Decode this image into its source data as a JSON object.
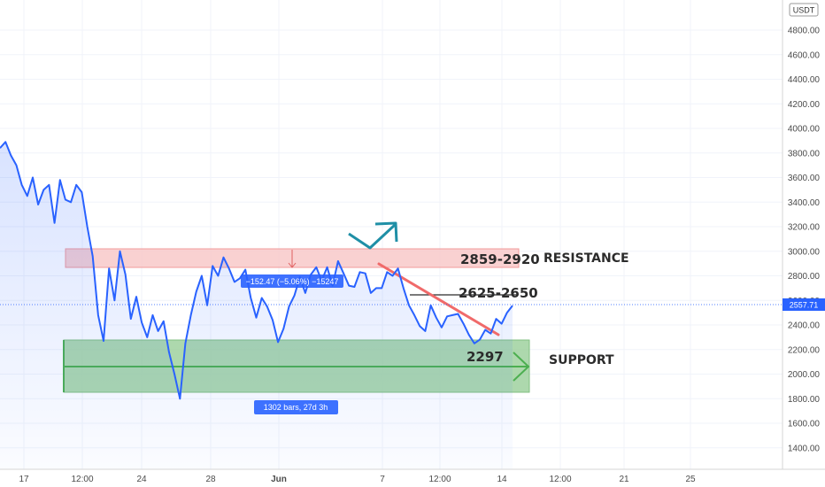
{
  "chart_data": {
    "type": "line",
    "symbol_currency": "USDT",
    "last_price": "2557.71",
    "ylim": [
      1300,
      5000
    ],
    "y_ticks": [
      "4800.00",
      "4600.00",
      "4400.00",
      "4200.00",
      "4000.00",
      "3800.00",
      "3600.00",
      "3400.00",
      "3200.00",
      "3000.00",
      "2800.00",
      "2600.00",
      "2400.00",
      "2200.00",
      "2000.00",
      "1800.00",
      "1600.00",
      "1400.00"
    ],
    "x_ticks": [
      "17",
      "12:00",
      "24",
      "28",
      "Jun",
      "7",
      "12:00",
      "14",
      "12:00",
      "21",
      "25"
    ],
    "grid": true,
    "series": [
      {
        "color": "#2962ff",
        "values": [
          3840,
          3890,
          3780,
          3700,
          3540,
          3450,
          3600,
          3380,
          3500,
          3540,
          3230,
          3580,
          3420,
          3400,
          3540,
          3480,
          3200,
          2960,
          2480,
          2270,
          2860,
          2600,
          3000,
          2810,
          2450,
          2630,
          2420,
          2300,
          2480,
          2350,
          2430,
          2180,
          2000,
          1800,
          2250,
          2480,
          2670,
          2800,
          2560,
          2880,
          2800,
          2950,
          2860,
          2750,
          2780,
          2850,
          2620,
          2460,
          2620,
          2550,
          2440,
          2260,
          2370,
          2550,
          2640,
          2790,
          2660,
          2810,
          2870,
          2760,
          2870,
          2720,
          2920,
          2820,
          2720,
          2710,
          2830,
          2820,
          2660,
          2700,
          2700,
          2830,
          2800,
          2860,
          2700,
          2560,
          2480,
          2390,
          2350,
          2560,
          2460,
          2380,
          2470,
          2480,
          2490,
          2410,
          2320,
          2250,
          2280,
          2360,
          2330,
          2450,
          2410,
          2500,
          2557.71
        ]
      }
    ],
    "annotations": {
      "resistance_zone": {
        "low": 2859,
        "high": 2920,
        "label": "2859-2920",
        "tag": "RESISTANCE",
        "color": "#f7a8a8"
      },
      "support_zone": {
        "low": 1850,
        "high": 2300,
        "label": "2297",
        "tag": "SUPPORT",
        "color": "#7fc47f"
      },
      "level_line": {
        "value": 2640,
        "label": "2625-2650"
      },
      "measure_box": {
        "label": "−152.47 (−5.06%) −15247"
      },
      "bars_label": "1302 bars, 27d 3h"
    }
  }
}
